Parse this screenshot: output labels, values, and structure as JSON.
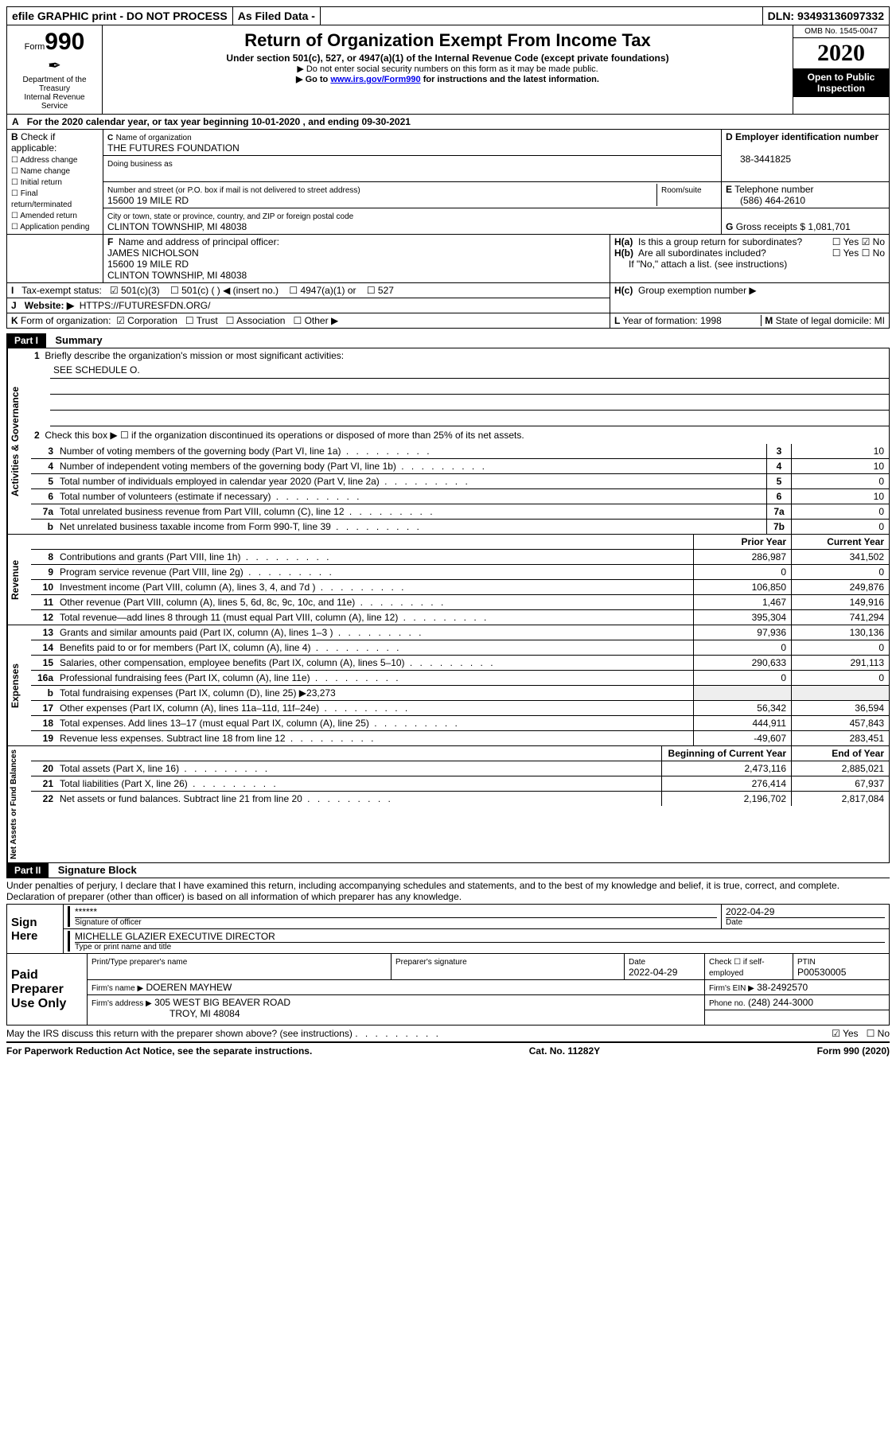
{
  "topbar": {
    "efile": "efile GRAPHIC print - DO NOT PROCESS",
    "asfiled": "As Filed Data -",
    "dln_label": "DLN:",
    "dln": "93493136097332"
  },
  "header": {
    "form_prefix": "Form",
    "form_num": "990",
    "dept1": "Department of the",
    "dept2": "Treasury",
    "dept3": "Internal Revenue Service",
    "main_title": "Return of Organization Exempt From Income Tax",
    "sub1": "Under section 501(c), 527, or 4947(a)(1) of the Internal Revenue Code (except private foundations)",
    "sub2": "▶ Do not enter social security numbers on this form as it may be made public.",
    "sub3a": "▶ Go to ",
    "sub3_link": "www.irs.gov/Form990",
    "sub3b": " for instructions and the latest information.",
    "omb": "OMB No. 1545-0047",
    "year": "2020",
    "open": "Open to Public Inspection"
  },
  "rowA": {
    "a": "A",
    "text1": "For the 2020 calendar year, or tax year beginning ",
    "begin": "10-01-2020",
    "text2": "  , and ending ",
    "end": "09-30-2021"
  },
  "b_section": {
    "b_label": "B",
    "check_label": "Check if applicable:",
    "opts": [
      "Address change",
      "Name change",
      "Initial return",
      "Final return/terminated",
      "Amended return",
      "Application pending"
    ]
  },
  "c_section": {
    "c": "C",
    "name_lbl": "Name of organization",
    "name": "THE FUTURES FOUNDATION",
    "dba_lbl": "Doing business as",
    "addr_lbl": "Number and street (or P.O. box if mail is not delivered to street address)",
    "room_lbl": "Room/suite",
    "addr": "15600 19 MILE RD",
    "city_lbl": "City or town, state or province, country, and ZIP or foreign postal code",
    "city": "CLINTON TOWNSHIP, MI  48038"
  },
  "d_section": {
    "d": "D",
    "ein_lbl": "Employer identification number",
    "ein": "38-3441825"
  },
  "e_section": {
    "e": "E",
    "tel_lbl": "Telephone number",
    "tel": "(586) 464-2610"
  },
  "g_section": {
    "g": "G",
    "gross_lbl": "Gross receipts $",
    "gross": "1,081,701"
  },
  "f_section": {
    "f": "F",
    "po_lbl": "Name and address of principal officer:",
    "line1": "JAMES NICHOLSON",
    "line2": "15600 19 MILE RD",
    "line3": "CLINTON TOWNSHIP, MI  48038"
  },
  "h_section": {
    "ha": "H(a)",
    "ha_text": "Is this a group return for subordinates?",
    "yes": "Yes",
    "no": "No",
    "hb": "H(b)",
    "hb_text": "Are all subordinates included?",
    "hb_note": "If \"No,\" attach a list. (see instructions)",
    "hc": "H(c)",
    "hc_text": "Group exemption number ▶"
  },
  "i_section": {
    "i": "I",
    "lbl": "Tax-exempt status:",
    "o1": "501(c)(3)",
    "o2": "501(c) (   ) ◀ (insert no.)",
    "o3": "4947(a)(1) or",
    "o4": "527"
  },
  "j_section": {
    "j": "J",
    "lbl": "Website: ▶",
    "val": "HTTPS://FUTURESFDN.ORG/"
  },
  "k_section": {
    "k": "K",
    "lbl": "Form of organization:",
    "o1": "Corporation",
    "o2": "Trust",
    "o3": "Association",
    "o4": "Other ▶"
  },
  "l_section": {
    "l": "L",
    "lbl": "Year of formation:",
    "val": "1998"
  },
  "m_section": {
    "m": "M",
    "lbl": "State of legal domicile:",
    "val": "MI"
  },
  "part1": {
    "label": "Part I",
    "title": "Summary",
    "l1_num": "1",
    "l1": "Briefly describe the organization's mission or most significant activities:",
    "l1_ans": "SEE SCHEDULE O.",
    "l2_num": "2",
    "l2": "Check this box ▶ ☐ if the organization discontinued its operations or disposed of more than 25% of its net assets.",
    "vert_ag": "Activities & Governance",
    "rows_ag": [
      {
        "n": "3",
        "t": "Number of voting members of the governing body (Part VI, line 1a)",
        "idx": "3",
        "v": "10"
      },
      {
        "n": "4",
        "t": "Number of independent voting members of the governing body (Part VI, line 1b)",
        "idx": "4",
        "v": "10"
      },
      {
        "n": "5",
        "t": "Total number of individuals employed in calendar year 2020 (Part V, line 2a)",
        "idx": "5",
        "v": "0"
      },
      {
        "n": "6",
        "t": "Total number of volunteers (estimate if necessary)",
        "idx": "6",
        "v": "10"
      },
      {
        "n": "7a",
        "t": "Total unrelated business revenue from Part VIII, column (C), line 12",
        "idx": "7a",
        "v": "0"
      },
      {
        "n": "b",
        "t": "Net unrelated business taxable income from Form 990-T, line 39",
        "idx": "7b",
        "v": "0"
      }
    ],
    "vert_rev": "Revenue",
    "hdr_prior": "Prior Year",
    "hdr_curr": "Current Year",
    "rows_rev": [
      {
        "n": "8",
        "t": "Contributions and grants (Part VIII, line 1h)",
        "p": "286,987",
        "c": "341,502"
      },
      {
        "n": "9",
        "t": "Program service revenue (Part VIII, line 2g)",
        "p": "0",
        "c": "0"
      },
      {
        "n": "10",
        "t": "Investment income (Part VIII, column (A), lines 3, 4, and 7d )",
        "p": "106,850",
        "c": "249,876"
      },
      {
        "n": "11",
        "t": "Other revenue (Part VIII, column (A), lines 5, 6d, 8c, 9c, 10c, and 11e)",
        "p": "1,467",
        "c": "149,916"
      },
      {
        "n": "12",
        "t": "Total revenue—add lines 8 through 11 (must equal Part VIII, column (A), line 12)",
        "p": "395,304",
        "c": "741,294"
      }
    ],
    "vert_exp": "Expenses",
    "rows_exp": [
      {
        "n": "13",
        "t": "Grants and similar amounts paid (Part IX, column (A), lines 1–3 )",
        "p": "97,936",
        "c": "130,136"
      },
      {
        "n": "14",
        "t": "Benefits paid to or for members (Part IX, column (A), line 4)",
        "p": "0",
        "c": "0"
      },
      {
        "n": "15",
        "t": "Salaries, other compensation, employee benefits (Part IX, column (A), lines 5–10)",
        "p": "290,633",
        "c": "291,113"
      },
      {
        "n": "16a",
        "t": "Professional fundraising fees (Part IX, column (A), line 11e)",
        "p": "0",
        "c": "0"
      },
      {
        "n": "b",
        "t": "Total fundraising expenses (Part IX, column (D), line 25) ▶23,273",
        "p": "",
        "c": ""
      },
      {
        "n": "17",
        "t": "Other expenses (Part IX, column (A), lines 11a–11d, 11f–24e)",
        "p": "56,342",
        "c": "36,594"
      },
      {
        "n": "18",
        "t": "Total expenses. Add lines 13–17 (must equal Part IX, column (A), line 25)",
        "p": "444,911",
        "c": "457,843"
      },
      {
        "n": "19",
        "t": "Revenue less expenses. Subtract line 18 from line 12",
        "p": "-49,607",
        "c": "283,451"
      }
    ],
    "vert_na": "Net Assets or Fund Balances",
    "hdr_boy": "Beginning of Current Year",
    "hdr_eoy": "End of Year",
    "rows_na": [
      {
        "n": "20",
        "t": "Total assets (Part X, line 16)",
        "p": "2,473,116",
        "c": "2,885,021"
      },
      {
        "n": "21",
        "t": "Total liabilities (Part X, line 26)",
        "p": "276,414",
        "c": "67,937"
      },
      {
        "n": "22",
        "t": "Net assets or fund balances. Subtract line 21 from line 20",
        "p": "2,196,702",
        "c": "2,817,084"
      }
    ]
  },
  "part2": {
    "label": "Part II",
    "title": "Signature Block",
    "decl": "Under penalties of perjury, I declare that I have examined this return, including accompanying schedules and statements, and to the best of my knowledge and belief, it is true, correct, and complete. Declaration of preparer (other than officer) is based on all information of which preparer has any knowledge.",
    "sign_here": "Sign Here",
    "stars": "******",
    "sig_of_officer": "Signature of officer",
    "date_lbl": "Date",
    "sig_date": "2022-04-29",
    "officer_name": "MICHELLE GLAZIER  EXECUTIVE DIRECTOR",
    "type_name": "Type or print name and title",
    "paid": "Paid Preparer Use Only",
    "p_name_lbl": "Print/Type preparer's name",
    "p_sig_lbl": "Preparer's signature",
    "p_date_lbl": "Date",
    "p_date": "2022-04-29",
    "p_check": "Check ☐ if self-employed",
    "ptin_lbl": "PTIN",
    "ptin": "P00530005",
    "firm_name_lbl": "Firm's name    ▶",
    "firm_name": "DOEREN MAYHEW",
    "firm_ein_lbl": "Firm's EIN ▶",
    "firm_ein": "38-2492570",
    "firm_addr_lbl": "Firm's address ▶",
    "firm_addr1": "305 WEST BIG BEAVER ROAD",
    "firm_addr2": "TROY, MI  48084",
    "phone_lbl": "Phone no.",
    "phone": "(248) 244-3000",
    "discuss": "May the IRS discuss this return with the preparer shown above? (see instructions)",
    "yes": "Yes",
    "no": "No"
  },
  "footer": {
    "left": "For Paperwork Reduction Act Notice, see the separate instructions.",
    "mid": "Cat. No. 11282Y",
    "right": "Form 990 (2020)"
  }
}
